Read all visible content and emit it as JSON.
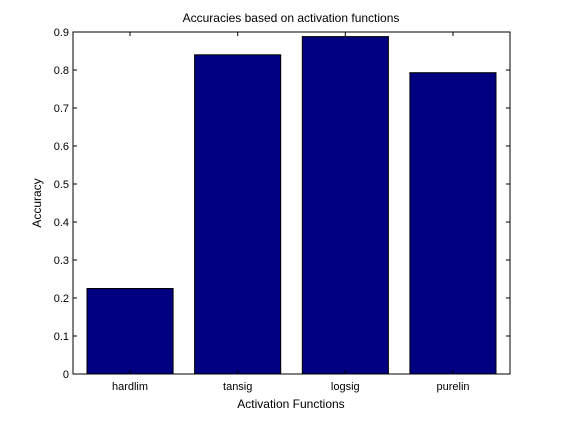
{
  "chart_data": {
    "type": "bar",
    "title": "Accuracies based on activation functions",
    "xlabel": "Activation Functions",
    "ylabel": "Accuracy",
    "categories": [
      "hardlim",
      "tansig",
      "logsig",
      "purelin"
    ],
    "values": [
      0.225,
      0.84,
      0.888,
      0.793
    ],
    "ylim": [
      0,
      0.9
    ],
    "yticks": [
      "0",
      "0.1",
      "0.2",
      "0.3",
      "0.4",
      "0.5",
      "0.6",
      "0.7",
      "0.8",
      "0.9"
    ],
    "bar_color": "#000080",
    "grid": false,
    "legend": "none"
  }
}
